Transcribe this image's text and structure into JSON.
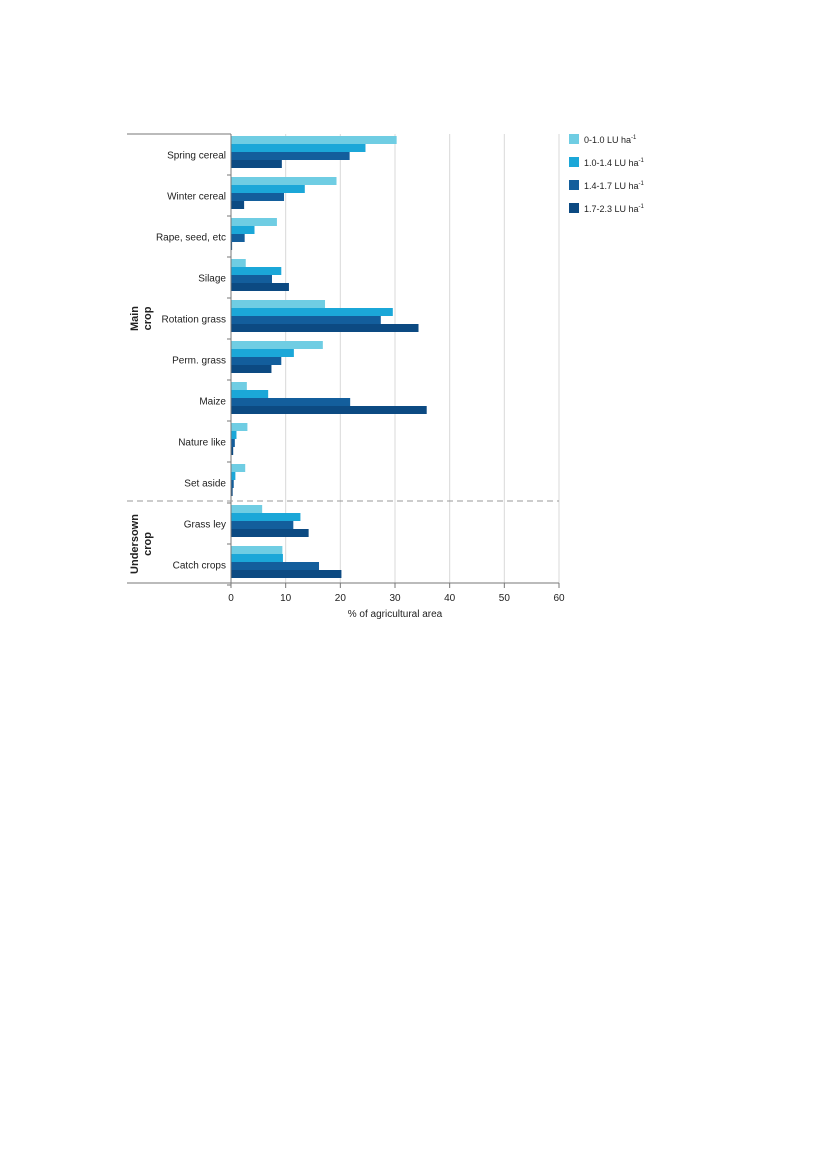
{
  "chart_data": {
    "type": "bar",
    "orientation": "horizontal",
    "xlabel": "% of agricultural area",
    "xlim": [
      0,
      60
    ],
    "xticks": [
      0,
      10,
      20,
      30,
      40,
      50,
      60
    ],
    "grid": true,
    "legend_position": "top-right outside",
    "groups": [
      {
        "label": "Main crop",
        "categories": [
          "Spring cereal",
          "Winter cereal",
          "Rape, seed, etc",
          "Silage",
          "Rotation grass",
          "Perm. grass",
          "Maize",
          "Nature like",
          "Set aside"
        ]
      },
      {
        "label": "Undersown crop",
        "categories": [
          "Grass ley",
          "Catch crops"
        ]
      }
    ],
    "categories": [
      "Spring cereal",
      "Winter cereal",
      "Rape, seed, etc",
      "Silage",
      "Rotation grass",
      "Perm. grass",
      "Maize",
      "Nature like",
      "Set aside",
      "Grass ley",
      "Catch crops"
    ],
    "series": [
      {
        "name": "0-1.0 LU ha⁻¹",
        "color": "#6fcde3",
        "values": [
          30.3,
          19.3,
          8.4,
          2.7,
          17.2,
          16.8,
          2.9,
          3.0,
          2.6,
          5.7,
          9.4
        ]
      },
      {
        "name": "1.0-1.4 LU ha⁻¹",
        "color": "#1ba7d8",
        "values": [
          24.6,
          13.5,
          4.3,
          9.2,
          29.6,
          11.5,
          6.8,
          1.0,
          0.8,
          12.7,
          9.5
        ]
      },
      {
        "name": "1.4-1.7 LU ha⁻¹",
        "color": "#135e9c",
        "values": [
          21.7,
          9.7,
          2.5,
          7.5,
          27.4,
          9.2,
          21.8,
          0.7,
          0.5,
          11.4,
          16.1
        ]
      },
      {
        "name": "1.7-2.3 LU ha⁻¹",
        "color": "#0c4a82",
        "values": [
          9.3,
          2.4,
          0.2,
          10.6,
          34.3,
          7.4,
          35.8,
          0.4,
          0.3,
          14.2,
          20.2
        ]
      }
    ]
  }
}
